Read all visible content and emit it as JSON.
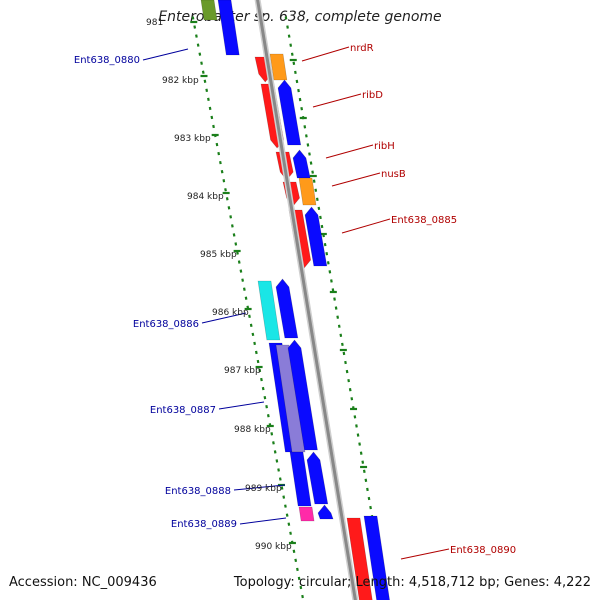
{
  "title": "Enterobacter sp. 638, complete genome",
  "footer": {
    "accession": "Accession: NC_009436",
    "summary": "Topology: circular; Length: 4,518,712 bp; Genes: 4,222"
  },
  "colors": {
    "backbone": "#888888",
    "tick": "#1a7f1a",
    "forward_cds": "#ff1a1a",
    "reverse_cds": "#0a0aff",
    "orange_feature": "#ff9a1a",
    "cyan_feature": "#1ae6e6",
    "magenta_feature": "#ff2aa8",
    "olive_feature": "#6a9a2a",
    "forward_label": "#b00000",
    "reverse_label": "#00009c"
  },
  "tick_labels": [
    "981",
    "982 kbp",
    "983 kbp",
    "984 kbp",
    "985 kbp",
    "986 kbp",
    "987 kbp",
    "988 kbp",
    "989 kbp",
    "990 kbp"
  ],
  "gene_labels": {
    "forward": [
      "nrdR",
      "ribD",
      "ribH",
      "nusB",
      "Ent638_0885",
      "Ent638_0890"
    ],
    "reverse": [
      "Ent638_0880",
      "Ent638_0886",
      "Ent638_0887",
      "Ent638_0888",
      "Ent638_0889"
    ]
  }
}
